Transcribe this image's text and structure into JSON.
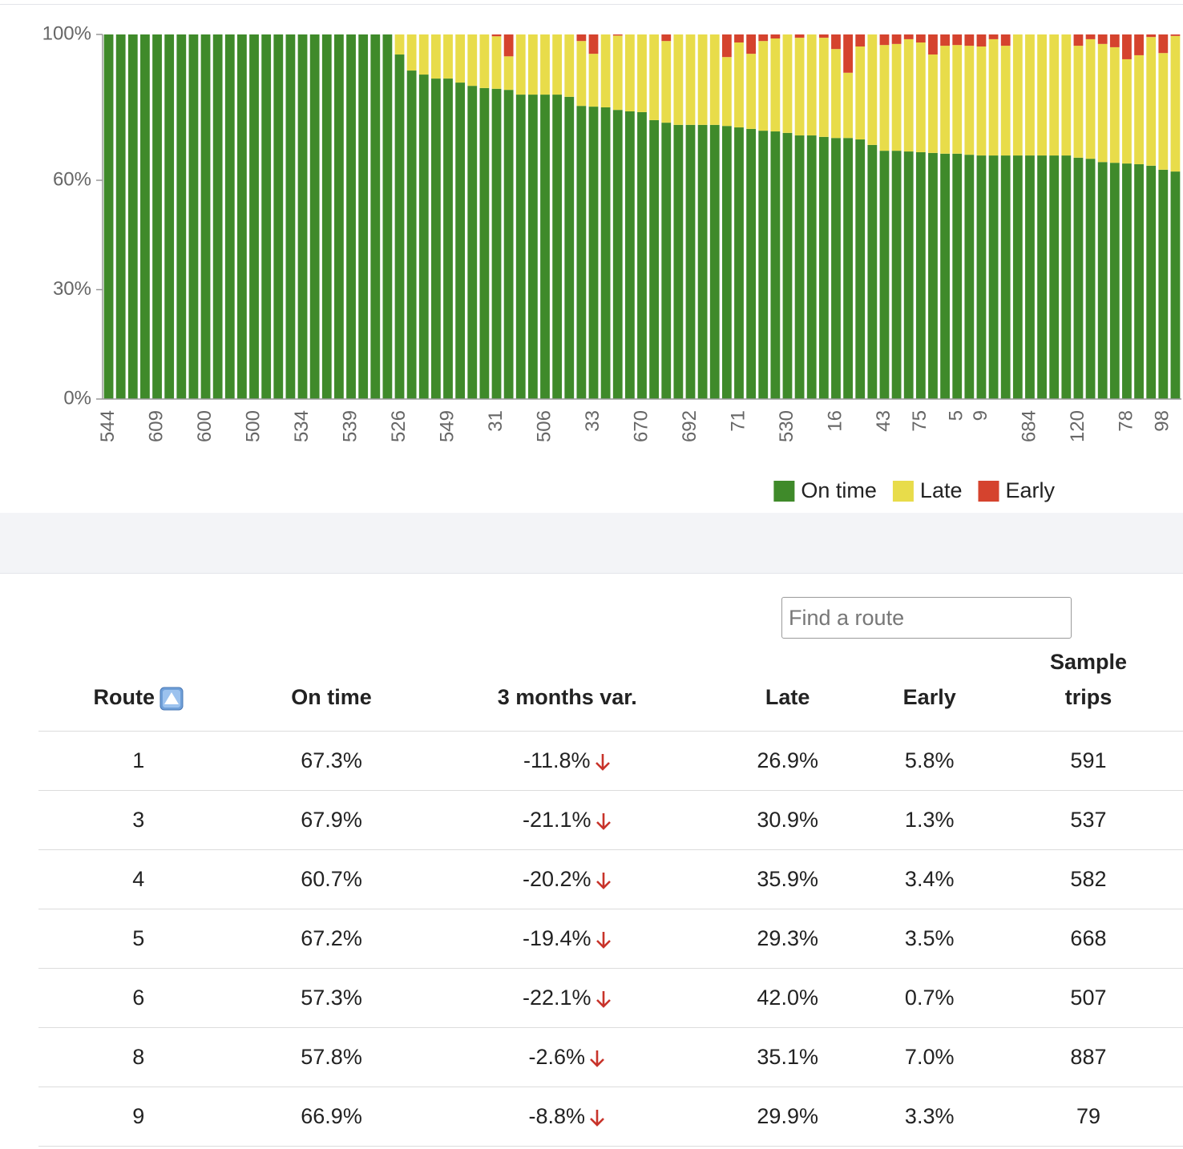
{
  "chart_data": {
    "type": "stacked_bar",
    "categories": [
      "544",
      null,
      null,
      null,
      "609",
      null,
      null,
      null,
      "600",
      null,
      null,
      null,
      "500",
      null,
      null,
      null,
      "534",
      null,
      null,
      null,
      "539",
      null,
      null,
      null,
      "526",
      null,
      null,
      null,
      "549",
      null,
      null,
      null,
      "31",
      null,
      null,
      null,
      "506",
      null,
      null,
      null,
      "33",
      null,
      null,
      null,
      "670",
      null,
      null,
      null,
      "692",
      null,
      null,
      null,
      "71",
      null,
      null,
      null,
      "530",
      null,
      null,
      null,
      "16",
      null,
      null,
      null,
      "43",
      null,
      null,
      "75",
      null,
      null,
      "5",
      null,
      "9",
      null,
      null,
      null,
      "684",
      null,
      null,
      null,
      "120",
      null,
      null,
      null,
      "78",
      null,
      null,
      "98",
      null
    ],
    "series": [
      {
        "name": "On time",
        "color": "#3f8a2a",
        "values": [
          100,
          100,
          100,
          100,
          100,
          100,
          100,
          100,
          100,
          100,
          100,
          100,
          100,
          100,
          100,
          100,
          100,
          100,
          100,
          100,
          100,
          100,
          100,
          100,
          94.5,
          90.1,
          89,
          87.9,
          87.9,
          86.8,
          85.9,
          85.3,
          85.1,
          84.8,
          83.5,
          83.5,
          83.5,
          83.5,
          82.9,
          80.4,
          80.2,
          80,
          79.3,
          78.9,
          78.7,
          76.5,
          75.8,
          75.2,
          75.2,
          75.2,
          75.2,
          74.9,
          74.5,
          74.1,
          73.6,
          73.4,
          73,
          72.3,
          72.3,
          71.9,
          71.6,
          71.6,
          71.2,
          69.7,
          68.1,
          68.1,
          67.9,
          67.7,
          67.5,
          67.3,
          67.3,
          67,
          66.8,
          66.8,
          66.8,
          66.8,
          66.8,
          66.8,
          66.8,
          66.8,
          66.2,
          65.9,
          65,
          64.8,
          64.6,
          64.4,
          64,
          62.9,
          62.4
        ]
      },
      {
        "name": "Late",
        "color": "#e8dc4a",
        "values": [
          0,
          0,
          0,
          0,
          0,
          0,
          0,
          0,
          0,
          0,
          0,
          0,
          0,
          0,
          0,
          0,
          0,
          0,
          0,
          0,
          0,
          0,
          0,
          0,
          5.5,
          9.9,
          11,
          12.1,
          12.1,
          13.2,
          14.1,
          14.7,
          14.4,
          9.2,
          16.5,
          16.5,
          16.5,
          16.5,
          17.1,
          17.8,
          14.5,
          20,
          20.4,
          21.1,
          21.3,
          23.5,
          22.4,
          24.8,
          24.8,
          24.8,
          24.8,
          18.9,
          23.3,
          20.6,
          24.6,
          25.5,
          27,
          26.8,
          27.7,
          27.2,
          24.4,
          17.9,
          25.5,
          30.3,
          29,
          29.3,
          30.8,
          30.1,
          27,
          29.6,
          29.8,
          29.9,
          29.9,
          31.9,
          30.1,
          33.2,
          33.2,
          33.2,
          33.2,
          33.2,
          30.7,
          32.8,
          32.4,
          31.7,
          28.6,
          29.9,
          35.3,
          32,
          37.2
        ]
      },
      {
        "name": "Early",
        "color": "#d5432e",
        "values": [
          0,
          0,
          0,
          0,
          0,
          0,
          0,
          0,
          0,
          0,
          0,
          0,
          0,
          0,
          0,
          0,
          0,
          0,
          0,
          0,
          0,
          0,
          0,
          0,
          0,
          0,
          0,
          0,
          0,
          0,
          0,
          0,
          0.5,
          6,
          0,
          0,
          0,
          0,
          0,
          1.8,
          5.3,
          0,
          0.3,
          0,
          0,
          0,
          1.8,
          0,
          0,
          0,
          0,
          6.2,
          2.2,
          5.3,
          1.8,
          1.1,
          0,
          0.9,
          0,
          0.9,
          4,
          10.5,
          3.3,
          0,
          2.9,
          2.6,
          1.3,
          2.2,
          5.5,
          3.1,
          2.9,
          3.1,
          3.3,
          1.3,
          3.1,
          0,
          0,
          0,
          0,
          0,
          3.1,
          1.3,
          2.6,
          3.5,
          6.8,
          5.7,
          0.7,
          5.1,
          0.4
        ]
      }
    ],
    "ylim": [
      0,
      100
    ],
    "yticks": [
      {
        "value": 0,
        "label": "0%"
      },
      {
        "value": 30,
        "label": "30%"
      },
      {
        "value": 60,
        "label": "60%"
      },
      {
        "value": 100,
        "label": "100%"
      }
    ],
    "legend": "bottom-right"
  },
  "table": {
    "search_placeholder": "Find a route",
    "headers": [
      "Route",
      "On time",
      "3 months var.",
      "Late",
      "Early",
      "Sample trips"
    ],
    "rows": [
      [
        "1",
        "67.3%",
        "-11.8%",
        "26.9%",
        "5.8%",
        "591"
      ],
      [
        "3",
        "67.9%",
        "-21.1%",
        "30.9%",
        "1.3%",
        "537"
      ],
      [
        "4",
        "60.7%",
        "-20.2%",
        "35.9%",
        "3.4%",
        "582"
      ],
      [
        "5",
        "67.2%",
        "-19.4%",
        "29.3%",
        "3.5%",
        "668"
      ],
      [
        "6",
        "57.3%",
        "-22.1%",
        "42.0%",
        "0.7%",
        "507"
      ],
      [
        "8",
        "57.8%",
        "-2.6%",
        "35.1%",
        "7.0%",
        "887"
      ],
      [
        "9",
        "66.9%",
        "-8.8%",
        "29.9%",
        "3.3%",
        "79"
      ]
    ]
  }
}
